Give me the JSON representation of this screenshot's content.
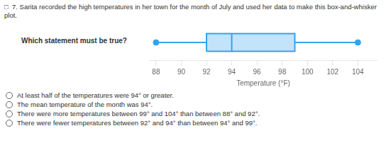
{
  "chart_data": {
    "type": "boxplot",
    "title": "□  7. Sarita recorded the high temperatures in her town for the month of July and used her data to make this box-and-whisker plot.",
    "subtitle": "Which statement must be true?",
    "annotations": [
      "At least half of the temperatures were 94° or greater.",
      "The mean temperature of the month was 94°.",
      "There were more temperatures between 99° and 104° than between 88° and 92°.",
      "There were fewer temperatures between 92° and 94° than between 94° and 99°."
    ],
    "xlabel": "Temperature (°F)",
    "min": 88,
    "q1": 92,
    "median": 94,
    "q3": 99,
    "max": 104,
    "xlim": [
      87.5,
      105.5
    ],
    "xticks": [
      88,
      90,
      92,
      94,
      96,
      98,
      100,
      102,
      104
    ],
    "grid": false,
    "tick_labels": "x"
  }
}
